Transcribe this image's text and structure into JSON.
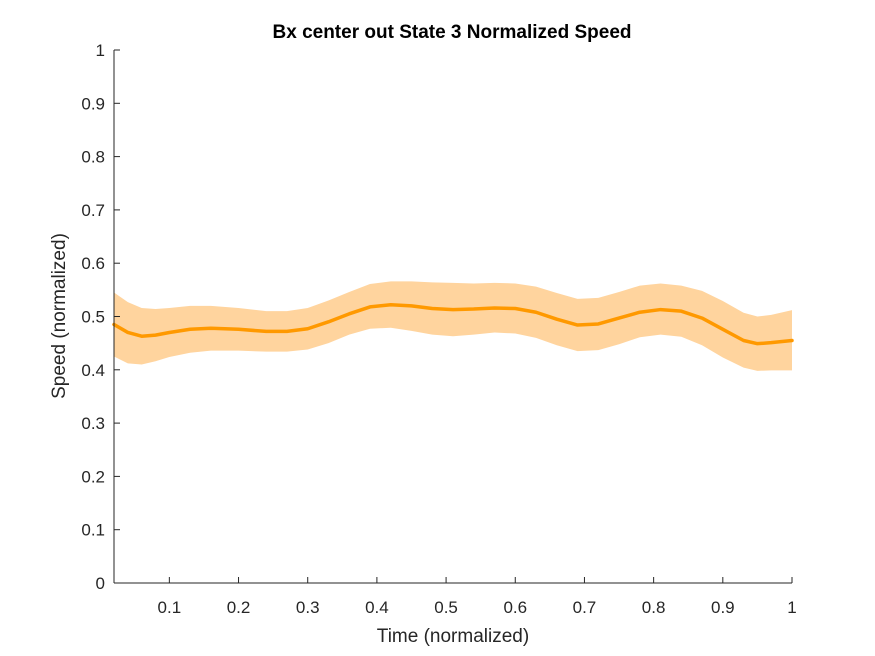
{
  "chart_data": {
    "type": "line",
    "title": "Bx  center out State 3 Normalized Speed",
    "xlabel": "Time (normalized)",
    "ylabel": "Speed (normalized)",
    "xlim": [
      0.02,
      1.0
    ],
    "ylim": [
      0,
      1
    ],
    "xticks": [
      0.1,
      0.2,
      0.3,
      0.4,
      0.5,
      0.6,
      0.7,
      0.8,
      0.9,
      1.0
    ],
    "xtick_labels": [
      "0.1",
      "0.2",
      "0.3",
      "0.4",
      "0.5",
      "0.6",
      "0.7",
      "0.8",
      "0.9",
      "1"
    ],
    "yticks": [
      0,
      0.1,
      0.2,
      0.3,
      0.4,
      0.5,
      0.6,
      0.7,
      0.8,
      0.9,
      1.0
    ],
    "ytick_labels": [
      "0",
      "0.1",
      "0.2",
      "0.3",
      "0.4",
      "0.5",
      "0.6",
      "0.7",
      "0.8",
      "0.9",
      "1"
    ],
    "grid": false,
    "legend": "none",
    "series": [
      {
        "color": "#ff9900",
        "band_color": "#ffd49e",
        "x": [
          0.02,
          0.04,
          0.06,
          0.08,
          0.1,
          0.13,
          0.16,
          0.2,
          0.24,
          0.27,
          0.3,
          0.33,
          0.36,
          0.39,
          0.42,
          0.45,
          0.48,
          0.51,
          0.54,
          0.57,
          0.6,
          0.63,
          0.66,
          0.69,
          0.72,
          0.75,
          0.78,
          0.81,
          0.84,
          0.87,
          0.9,
          0.93,
          0.95,
          0.97,
          1.0
        ],
        "y": [
          0.485,
          0.47,
          0.463,
          0.465,
          0.47,
          0.476,
          0.478,
          0.476,
          0.472,
          0.472,
          0.477,
          0.49,
          0.505,
          0.518,
          0.522,
          0.52,
          0.515,
          0.513,
          0.514,
          0.516,
          0.515,
          0.508,
          0.495,
          0.484,
          0.486,
          0.497,
          0.508,
          0.513,
          0.51,
          0.497,
          0.476,
          0.455,
          0.449,
          0.451,
          0.455
        ],
        "lower": [
          0.425,
          0.412,
          0.41,
          0.416,
          0.424,
          0.432,
          0.436,
          0.436,
          0.434,
          0.434,
          0.438,
          0.45,
          0.466,
          0.477,
          0.479,
          0.473,
          0.466,
          0.463,
          0.466,
          0.47,
          0.468,
          0.46,
          0.446,
          0.435,
          0.437,
          0.448,
          0.461,
          0.466,
          0.462,
          0.446,
          0.423,
          0.404,
          0.398,
          0.399,
          0.399
        ],
        "upper": [
          0.545,
          0.527,
          0.516,
          0.514,
          0.516,
          0.52,
          0.52,
          0.516,
          0.51,
          0.51,
          0.516,
          0.53,
          0.546,
          0.561,
          0.566,
          0.566,
          0.564,
          0.563,
          0.562,
          0.563,
          0.562,
          0.556,
          0.544,
          0.533,
          0.535,
          0.546,
          0.558,
          0.562,
          0.558,
          0.548,
          0.529,
          0.507,
          0.5,
          0.503,
          0.512
        ]
      }
    ]
  }
}
